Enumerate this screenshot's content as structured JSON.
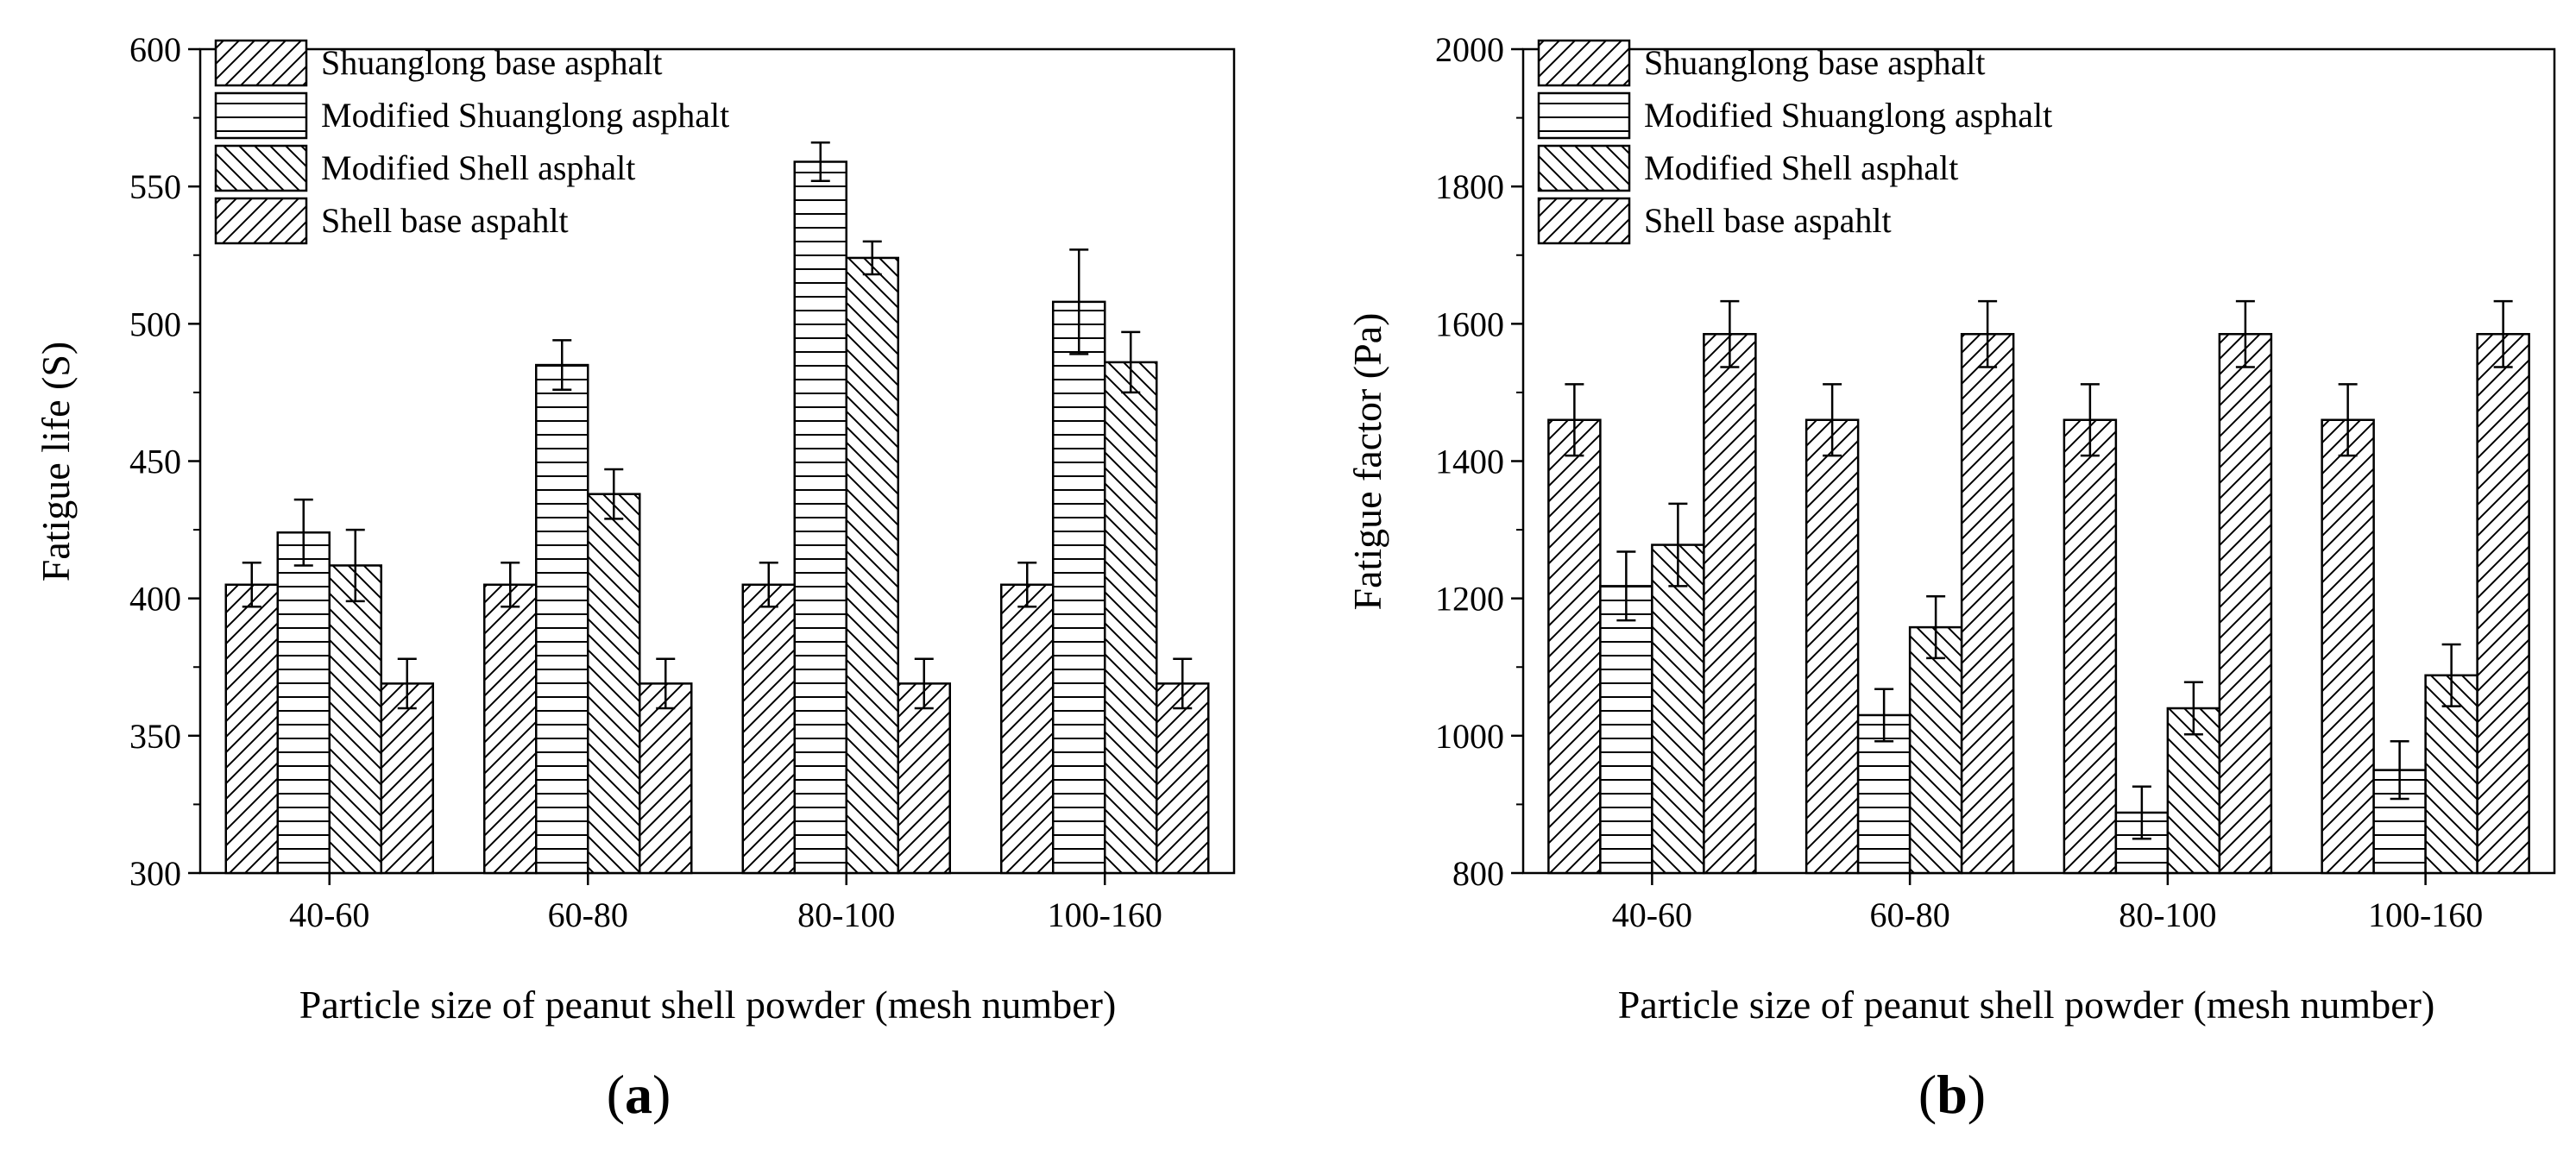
{
  "chart_data": [
    {
      "panel": "(a)",
      "panel_letter": "a",
      "type": "bar",
      "categories": [
        "40-60",
        "60-80",
        "80-100",
        "100-160"
      ],
      "xlabel": "Particle size of peanut shell powder (mesh number)",
      "ylabel": "Fatigue life (S)",
      "ylim": [
        300,
        600
      ],
      "yticks": [
        300,
        350,
        400,
        450,
        500,
        550,
        600
      ],
      "legend_position": "top-left",
      "series": [
        {
          "name": "Shuanglong base asphalt",
          "pattern": "diag-right",
          "values": [
            405,
            405,
            405,
            405
          ],
          "errors": [
            8,
            8,
            8,
            8
          ]
        },
        {
          "name": "Modified Shuanglong asphalt",
          "pattern": "horizontal",
          "values": [
            424,
            485,
            559,
            508
          ],
          "errors": [
            12,
            9,
            7,
            19
          ]
        },
        {
          "name": "Modified Shell asphalt",
          "pattern": "diag-left",
          "values": [
            412,
            438,
            524,
            486
          ],
          "errors": [
            13,
            9,
            6,
            11
          ]
        },
        {
          "name": "Shell base aspahlt",
          "pattern": "diag-right",
          "values": [
            369,
            369,
            369,
            369
          ],
          "errors": [
            9,
            9,
            9,
            9
          ]
        }
      ]
    },
    {
      "panel": "(b)",
      "panel_letter": "b",
      "type": "bar",
      "categories": [
        "40-60",
        "60-80",
        "80-100",
        "100-160"
      ],
      "xlabel": "Particle size of peanut shell powder (mesh number)",
      "ylabel": "Fatigue factor (Pa)",
      "ylim": [
        800,
        2000
      ],
      "yticks": [
        800,
        1000,
        1200,
        1400,
        1600,
        1800,
        2000
      ],
      "legend_position": "top-left",
      "series": [
        {
          "name": "Shuanglong base asphalt",
          "pattern": "diag-right",
          "values": [
            1460,
            1460,
            1460,
            1460
          ],
          "errors": [
            52,
            52,
            52,
            52
          ]
        },
        {
          "name": "Modified Shuanglong asphalt",
          "pattern": "horizontal",
          "values": [
            1218,
            1030,
            888,
            950
          ],
          "errors": [
            50,
            38,
            38,
            42
          ]
        },
        {
          "name": "Modified Shell asphalt",
          "pattern": "diag-left",
          "values": [
            1278,
            1158,
            1040,
            1088
          ],
          "errors": [
            60,
            45,
            38,
            45
          ]
        },
        {
          "name": "Shell base aspahlt",
          "pattern": "diag-right",
          "values": [
            1585,
            1585,
            1585,
            1585
          ],
          "errors": [
            48,
            48,
            48,
            48
          ]
        }
      ]
    }
  ]
}
